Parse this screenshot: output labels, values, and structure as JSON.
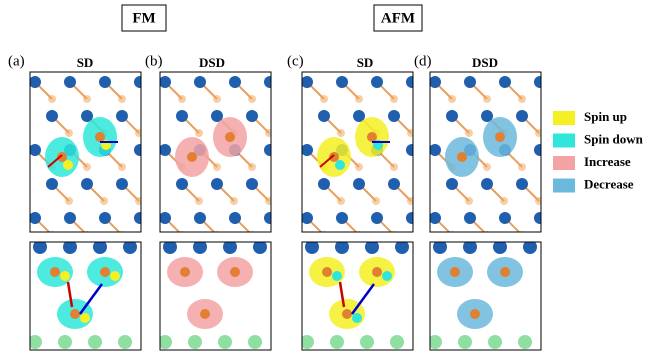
{
  "groups": [
    {
      "label": "FM"
    },
    {
      "label": "AFM"
    }
  ],
  "panels": [
    {
      "label": "(a)",
      "title": "SD"
    },
    {
      "label": "(b)",
      "title": "DSD"
    },
    {
      "label": "(c)",
      "title": "SD"
    },
    {
      "label": "(d)",
      "title": "DSD"
    }
  ],
  "legend": [
    {
      "label": "Spin up",
      "color": "#f5f023"
    },
    {
      "label": "Spin down",
      "color": "#2ee6da"
    },
    {
      "label": "Increase",
      "color": "#f3a3a3"
    },
    {
      "label": "Decrease",
      "color": "#6bb9dc"
    }
  ]
}
